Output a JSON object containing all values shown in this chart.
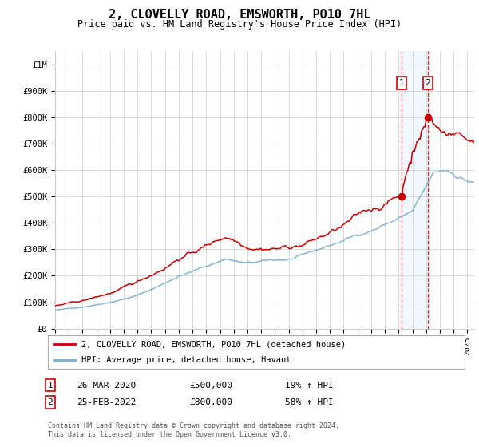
{
  "title": "2, CLOVELLY ROAD, EMSWORTH, PO10 7HL",
  "subtitle": "Price paid vs. HM Land Registry's House Price Index (HPI)",
  "title_fontsize": 11,
  "subtitle_fontsize": 8.5,
  "ylabel_ticks": [
    "£0",
    "£100K",
    "£200K",
    "£300K",
    "£400K",
    "£500K",
    "£600K",
    "£700K",
    "£800K",
    "£900K",
    "£1M"
  ],
  "ytick_values": [
    0,
    100000,
    200000,
    300000,
    400000,
    500000,
    600000,
    700000,
    800000,
    900000,
    1000000
  ],
  "ylim": [
    0,
    1050000
  ],
  "xlim_start": 1995.0,
  "xlim_end": 2025.5,
  "red_line_color": "#cc0000",
  "blue_line_color": "#7aadcf",
  "grid_color": "#cccccc",
  "background_color": "#ffffff",
  "annotation_bg": "#ddeeff",
  "dashed_line_color": "#cc0000",
  "sale1_x": 2020.23,
  "sale1_y": 500000,
  "sale1_label": "1",
  "sale1_date": "26-MAR-2020",
  "sale1_price": "£500,000",
  "sale1_hpi": "19% ↑ HPI",
  "sale2_x": 2022.13,
  "sale2_y": 800000,
  "sale2_label": "2",
  "sale2_date": "25-FEB-2022",
  "sale2_price": "£800,000",
  "sale2_hpi": "58% ↑ HPI",
  "legend_line1": "2, CLOVELLY ROAD, EMSWORTH, PO10 7HL (detached house)",
  "legend_line2": "HPI: Average price, detached house, Havant",
  "footnote": "Contains HM Land Registry data © Crown copyright and database right 2024.\nThis data is licensed under the Open Government Licence v3.0."
}
